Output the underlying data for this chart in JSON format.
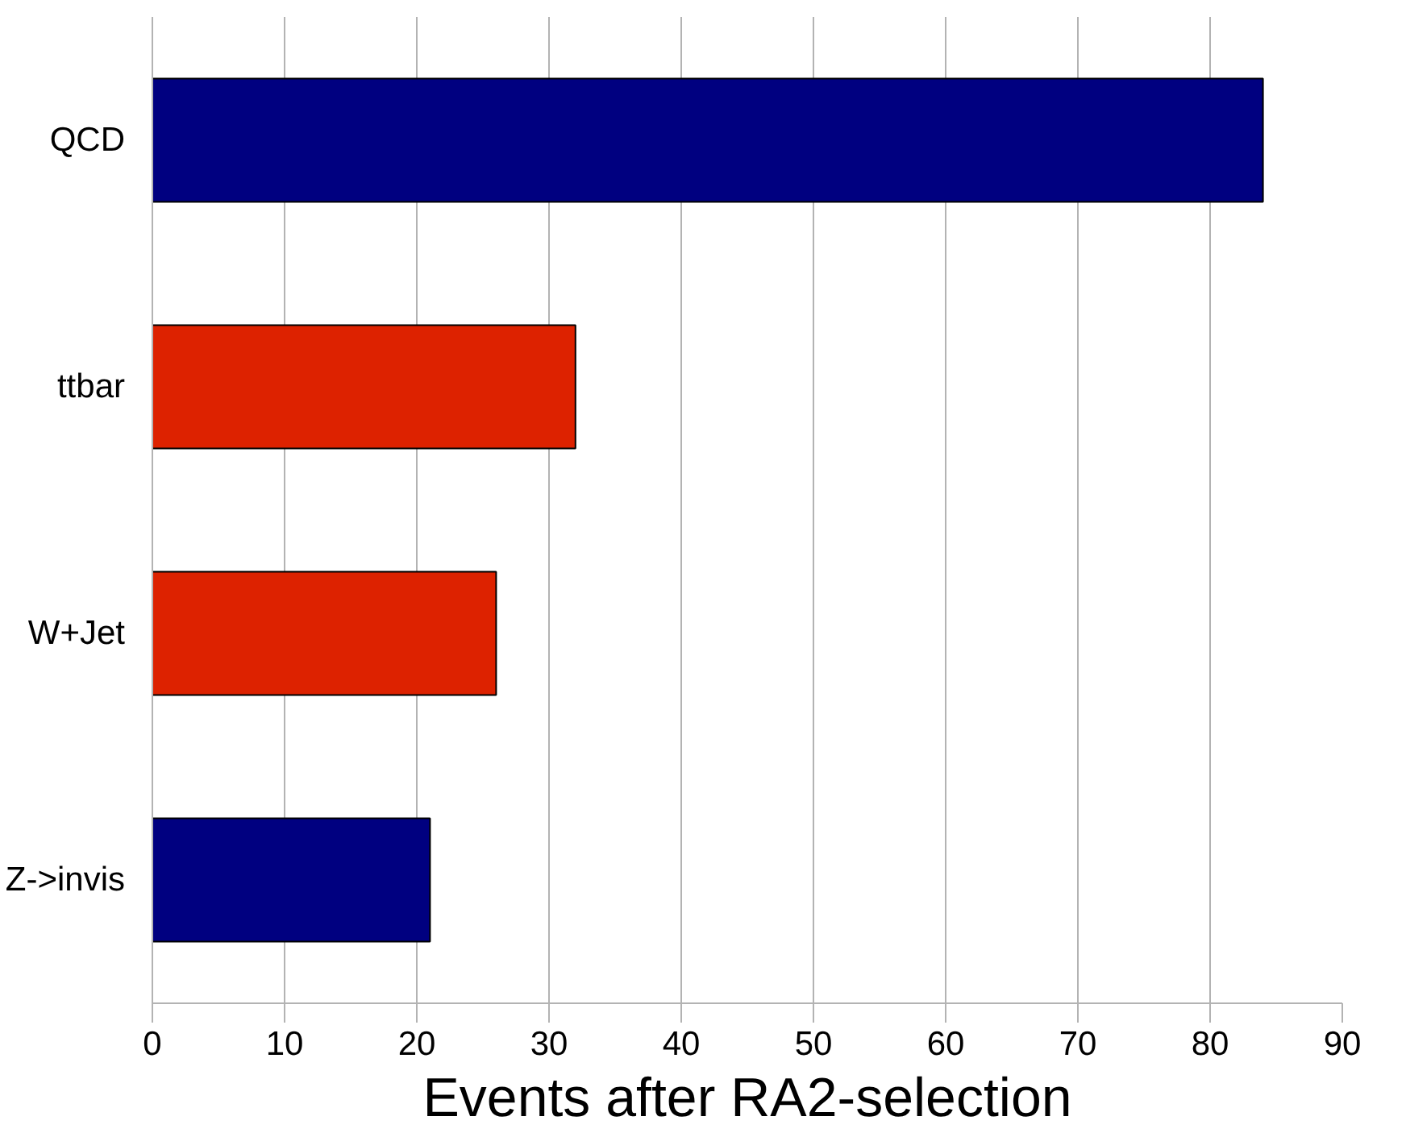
{
  "chart_data": {
    "type": "bar",
    "orientation": "horizontal",
    "xlabel": "Events after RA2-selection",
    "categories": [
      "QCD",
      "ttbar",
      "W+Jet",
      "Z->invis"
    ],
    "values": [
      84,
      32,
      26,
      21
    ],
    "colors": [
      "#000080",
      "#dd2200",
      "#dd2200",
      "#000080"
    ],
    "xlim": [
      0,
      90
    ],
    "xticks": [
      0,
      10,
      20,
      30,
      40,
      50,
      60,
      70,
      80,
      90
    ],
    "grid": "x"
  }
}
